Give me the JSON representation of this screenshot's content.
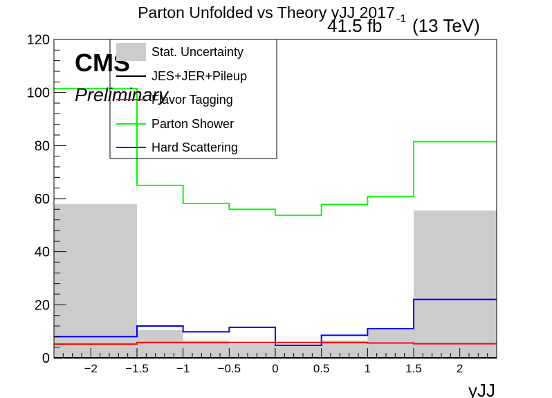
{
  "chart_data": {
    "type": "histogram",
    "title": "Parton Unfolded vs Theory yJJ 2017",
    "lumi_label": "41.5 fb",
    "lumi_exp": "-1",
    "energy_label": "(13 TeV)",
    "cms_label": "CMS",
    "prelim_label": "Preliminary",
    "xlabel": "yJJ",
    "ylabel": "",
    "xlim": [
      -2.4,
      2.4
    ],
    "ylim": [
      0,
      120
    ],
    "yticks": [
      "0",
      "20",
      "40",
      "60",
      "80",
      "100",
      "120"
    ],
    "xticks": [
      {
        "v": -2,
        "label": "−2"
      },
      {
        "v": -1.5,
        "label": "−1.5"
      },
      {
        "v": -1,
        "label": "−1"
      },
      {
        "v": -0.5,
        "label": "−0.5"
      },
      {
        "v": 0,
        "label": "0"
      },
      {
        "v": 0.5,
        "label": "0.5"
      },
      {
        "v": 1,
        "label": "1"
      },
      {
        "v": 1.5,
        "label": "1.5"
      },
      {
        "v": 2,
        "label": "2"
      }
    ],
    "bin_edges": [
      -2.4,
      -1.5,
      -1.0,
      -0.5,
      0.0,
      0.5,
      1.0,
      1.5,
      2.4
    ],
    "stat_uncertainty": [
      58,
      10.5,
      6.5,
      5.2,
      5.2,
      6.5,
      10.5,
      55.5
    ],
    "series": [
      {
        "name": "JES+JER+Pileup",
        "color": "#000000",
        "values": [
          0,
          0,
          0,
          0,
          0,
          0,
          0,
          0
        ]
      },
      {
        "name": "Flavor Tagging",
        "color": "#ff0000",
        "values": [
          5.2,
          5.8,
          5.8,
          5.8,
          5.8,
          5.8,
          5.6,
          5.3
        ]
      },
      {
        "name": "Parton Shower",
        "color": "#00ff00",
        "values": [
          101.5,
          65,
          58.2,
          56,
          53.7,
          57.8,
          60.8,
          81.5
        ]
      },
      {
        "name": "Hard Scattering",
        "color": "#0000ff",
        "values": [
          8,
          12,
          9.8,
          11.5,
          4.7,
          8.5,
          11,
          22
        ]
      }
    ],
    "legend": [
      {
        "label": "Stat. Uncertainty",
        "kind": "fill",
        "color": "#cccccc"
      },
      {
        "label": "JES+JER+Pileup",
        "kind": "line",
        "color": "#000000"
      },
      {
        "label": "Flavor Tagging",
        "kind": "line",
        "color": "#ff0000"
      },
      {
        "label": "Parton Shower",
        "kind": "line",
        "color": "#00ff00"
      },
      {
        "label": "Hard Scattering",
        "kind": "line",
        "color": "#0000ff"
      }
    ],
    "legend_position": "top-left",
    "grid": false
  }
}
